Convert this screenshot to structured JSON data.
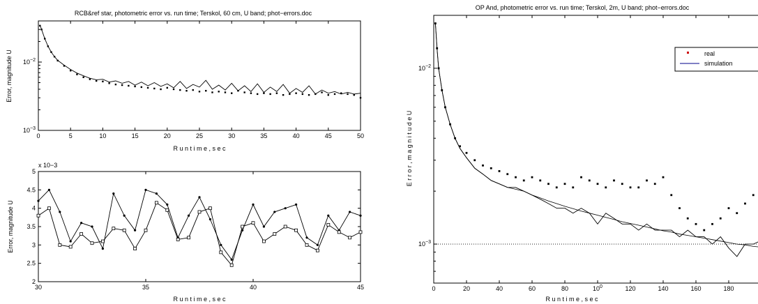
{
  "charts": [
    {
      "title": "RCB&ref star, photometric error vs. run time; Terskol, 60 cm, U band; phot−errors.doc",
      "xlabel": "R u n   t i m e ,   s e c",
      "ylabel": "Error, magnitude U",
      "xticks": [
        "0",
        "5",
        "10",
        "15",
        "20",
        "25",
        "30",
        "35",
        "40",
        "45",
        "50"
      ],
      "yticks": [
        "10−3",
        "10−2"
      ],
      "exponent": ""
    },
    {
      "title": "",
      "xlabel": "R u n   t i m e ,   s e c",
      "ylabel": "Error,  magnitude  U",
      "xticks": [
        "30",
        "35",
        "40",
        "45"
      ],
      "yticks": [
        "2",
        "2.5",
        "3",
        "3.5",
        "4",
        "4.5",
        "5"
      ],
      "exponent": "x 10−3"
    },
    {
      "title": "OP And, photometric error vs. run time; Terskol, 2m, U band; phot−errors.doc",
      "xlabel": "R u n   t i m e ,   s e c",
      "ylabel": "E r r o r ,   m a g n i t u d e   U",
      "xticks": [
        "0",
        "20",
        "40",
        "60",
        "80",
        "100",
        "120",
        "140",
        "160",
        "180"
      ],
      "yticks": [
        "10−3",
        "10−2"
      ],
      "exponent": "",
      "legend": [
        "real",
        "simulation"
      ]
    }
  ],
  "chart_data": [
    {
      "type": "scatter",
      "title": "RCB&ref star, photometric error vs. run time; Terskol, 60 cm, U band; phot−errors.doc",
      "xlabel": "Run time, sec",
      "ylabel": "Error, magnitude U",
      "xlim": [
        0,
        50
      ],
      "ylim": [
        0.001,
        0.04
      ],
      "yscale": "log",
      "grid": false,
      "series": [
        {
          "name": "",
          "style": "points",
          "x": [
            0.25,
            0.5,
            1,
            1.5,
            2,
            2.5,
            3,
            4,
            5,
            6,
            7,
            8,
            9,
            10,
            11,
            12,
            13,
            14,
            15,
            16,
            17,
            18,
            19,
            20,
            21,
            22,
            23,
            24,
            25,
            26,
            27,
            28,
            29,
            30,
            31,
            32,
            33,
            34,
            35,
            36,
            37,
            38,
            39,
            40,
            41,
            42,
            43,
            44,
            45,
            46,
            47,
            48,
            49,
            50
          ],
          "y": [
            0.034,
            0.03,
            0.022,
            0.017,
            0.014,
            0.012,
            0.0105,
            0.0088,
            0.0075,
            0.0066,
            0.006,
            0.0056,
            0.0053,
            0.0052,
            0.0049,
            0.0047,
            0.0046,
            0.0045,
            0.0044,
            0.0043,
            0.0042,
            0.0041,
            0.004,
            0.0042,
            0.004,
            0.0039,
            0.0038,
            0.0039,
            0.0037,
            0.0038,
            0.0036,
            0.0037,
            0.0036,
            0.0035,
            0.0038,
            0.0036,
            0.0035,
            0.0034,
            0.0035,
            0.0034,
            0.0035,
            0.0033,
            0.0034,
            0.0035,
            0.0034,
            0.0033,
            0.0034,
            0.0036,
            0.0033,
            0.0034,
            0.0035,
            0.0034,
            0.0033,
            0.003
          ]
        },
        {
          "name": "",
          "style": "line",
          "x": [
            0.25,
            0.5,
            1,
            1.5,
            2,
            2.5,
            3,
            4,
            5,
            6,
            7,
            8,
            9,
            10,
            11,
            12,
            13,
            14,
            15,
            16,
            17,
            18,
            19,
            20,
            21,
            22,
            23,
            24,
            25,
            26,
            27,
            28,
            29,
            30,
            31,
            32,
            33,
            34,
            35,
            36,
            37,
            38,
            39,
            40,
            41,
            42,
            43,
            44,
            45,
            46,
            47,
            48,
            49,
            50
          ],
          "y": [
            0.035,
            0.03,
            0.022,
            0.017,
            0.014,
            0.012,
            0.0106,
            0.009,
            0.0078,
            0.0069,
            0.0063,
            0.0058,
            0.0055,
            0.0056,
            0.0051,
            0.0053,
            0.0049,
            0.0052,
            0.0046,
            0.0051,
            0.0045,
            0.005,
            0.0044,
            0.0048,
            0.0042,
            0.0052,
            0.0041,
            0.0047,
            0.0043,
            0.0054,
            0.004,
            0.0046,
            0.0039,
            0.0049,
            0.0038,
            0.0045,
            0.0037,
            0.0048,
            0.0036,
            0.0043,
            0.0037,
            0.0047,
            0.0035,
            0.0041,
            0.0036,
            0.0045,
            0.0034,
            0.0039,
            0.0035,
            0.0037,
            0.0034,
            0.0036,
            0.0034,
            0.0035
          ]
        }
      ]
    },
    {
      "type": "line",
      "title": "",
      "xlabel": "Run time, sec",
      "ylabel": "Error, magnitude U",
      "xlim": [
        30,
        45
      ],
      "ylim": [
        2,
        5
      ],
      "yscale": "linear",
      "yexponent": "x 10−3",
      "grid": false,
      "series": [
        {
          "name": "",
          "marker": "dot",
          "x": [
            30,
            30.5,
            31,
            31.5,
            32,
            32.5,
            33,
            33.5,
            34,
            34.5,
            35,
            35.5,
            36,
            36.5,
            37,
            37.5,
            38,
            38.5,
            39,
            39.5,
            40,
            40.5,
            41,
            41.5,
            42,
            42.5,
            43,
            43.5,
            44,
            44.5,
            45
          ],
          "y": [
            4.2,
            4.5,
            3.9,
            3.1,
            3.6,
            3.5,
            2.9,
            4.4,
            3.8,
            3.4,
            4.5,
            4.4,
            4.1,
            3.2,
            3.8,
            4.3,
            3.7,
            3.0,
            2.6,
            3.4,
            4.1,
            3.5,
            3.9,
            4.0,
            4.1,
            3.2,
            3.0,
            3.8,
            3.4,
            3.9,
            3.8
          ]
        },
        {
          "name": "",
          "marker": "square",
          "x": [
            30,
            30.5,
            31,
            31.5,
            32,
            32.5,
            33,
            33.5,
            34,
            34.5,
            35,
            35.5,
            36,
            36.5,
            37,
            37.5,
            38,
            38.5,
            39,
            39.5,
            40,
            40.5,
            41,
            41.5,
            42,
            42.5,
            43,
            43.5,
            44,
            44.5,
            45
          ],
          "y": [
            3.8,
            4.0,
            3.0,
            2.95,
            3.3,
            3.05,
            3.1,
            3.45,
            3.4,
            2.9,
            3.4,
            4.15,
            3.95,
            3.15,
            3.2,
            3.9,
            4.0,
            2.8,
            2.45,
            3.5,
            3.6,
            3.1,
            3.3,
            3.5,
            3.4,
            3.0,
            2.85,
            3.55,
            3.35,
            3.2,
            3.35
          ]
        }
      ]
    },
    {
      "type": "scatter",
      "title": "OP And, photometric error vs. run time; Terskol, 2m, U band; phot−errors.doc",
      "xlabel": "Run time, sec",
      "ylabel": "Error, magnitude U",
      "xlim": [
        0,
        200
      ],
      "ylim": [
        0.0006,
        0.02
      ],
      "yscale": "log",
      "grid": false,
      "legend_position": "top-right",
      "reference_line": 0.001,
      "series": [
        {
          "name": "real",
          "style": "points",
          "color": "#cc0000",
          "x": [
            1,
            2,
            3,
            5,
            7,
            10,
            13,
            16,
            20,
            25,
            30,
            35,
            40,
            45,
            50,
            55,
            60,
            65,
            70,
            75,
            80,
            85,
            90,
            95,
            100,
            105,
            110,
            115,
            120,
            125,
            130,
            135,
            140,
            145,
            150,
            155,
            160,
            165,
            170,
            175,
            180,
            185,
            190,
            195,
            200
          ],
          "y": [
            0.018,
            0.013,
            0.01,
            0.0075,
            0.006,
            0.0048,
            0.004,
            0.0036,
            0.0033,
            0.003,
            0.0028,
            0.0027,
            0.0026,
            0.0025,
            0.0024,
            0.0023,
            0.0024,
            0.0023,
            0.0022,
            0.0021,
            0.0022,
            0.0021,
            0.0024,
            0.0023,
            0.0022,
            0.0021,
            0.0023,
            0.0022,
            0.0021,
            0.0021,
            0.0023,
            0.0022,
            0.0024,
            0.0019,
            0.0016,
            0.0014,
            0.0013,
            0.0012,
            0.0013,
            0.0014,
            0.0016,
            0.0015,
            0.0017,
            0.0019,
            0.0021
          ]
        },
        {
          "name": "simulation",
          "style": "line",
          "color": "#000000",
          "x": [
            1,
            2,
            3,
            5,
            7,
            10,
            13,
            16,
            20,
            25,
            30,
            35,
            40,
            45,
            50,
            55,
            60,
            65,
            70,
            75,
            80,
            85,
            90,
            95,
            100,
            105,
            110,
            115,
            120,
            125,
            130,
            135,
            140,
            145,
            150,
            155,
            160,
            165,
            170,
            175,
            180,
            185,
            190,
            195,
            200
          ],
          "y": [
            0.018,
            0.013,
            0.01,
            0.0075,
            0.006,
            0.0048,
            0.004,
            0.0035,
            0.0031,
            0.0027,
            0.0025,
            0.0023,
            0.0022,
            0.0021,
            0.0021,
            0.002,
            0.0019,
            0.0018,
            0.0017,
            0.0016,
            0.0016,
            0.0015,
            0.0016,
            0.0015,
            0.0013,
            0.0015,
            0.0014,
            0.0013,
            0.0013,
            0.0012,
            0.0013,
            0.0012,
            0.0012,
            0.0012,
            0.0011,
            0.0012,
            0.0011,
            0.0011,
            0.001,
            0.0011,
            0.00095,
            0.00085,
            0.001,
            0.001,
            0.00105
          ]
        },
        {
          "name": "",
          "style": "smooth",
          "color": "#000000",
          "x": [
            1,
            2,
            3,
            5,
            7,
            10,
            13,
            16,
            20,
            25,
            30,
            35,
            40,
            45,
            50,
            55,
            60,
            65,
            70,
            75,
            80,
            85,
            90,
            95,
            100,
            105,
            110,
            115,
            120,
            125,
            130,
            135,
            140,
            145,
            150,
            155,
            160,
            165,
            170,
            175,
            180,
            185,
            190,
            195,
            200
          ],
          "y": [
            0.018,
            0.013,
            0.01,
            0.0075,
            0.006,
            0.0048,
            0.004,
            0.0035,
            0.0031,
            0.0027,
            0.0025,
            0.0023,
            0.0022,
            0.0021,
            0.00205,
            0.002,
            0.0019,
            0.00183,
            0.00176,
            0.0017,
            0.00164,
            0.00159,
            0.00154,
            0.0015,
            0.00146,
            0.00142,
            0.00138,
            0.00134,
            0.00131,
            0.00128,
            0.00125,
            0.00122,
            0.00119,
            0.00117,
            0.00114,
            0.00112,
            0.0011,
            0.00108,
            0.00106,
            0.00104,
            0.00102,
            0.001,
            0.00099,
            0.00097,
            0.00096
          ]
        }
      ]
    }
  ]
}
